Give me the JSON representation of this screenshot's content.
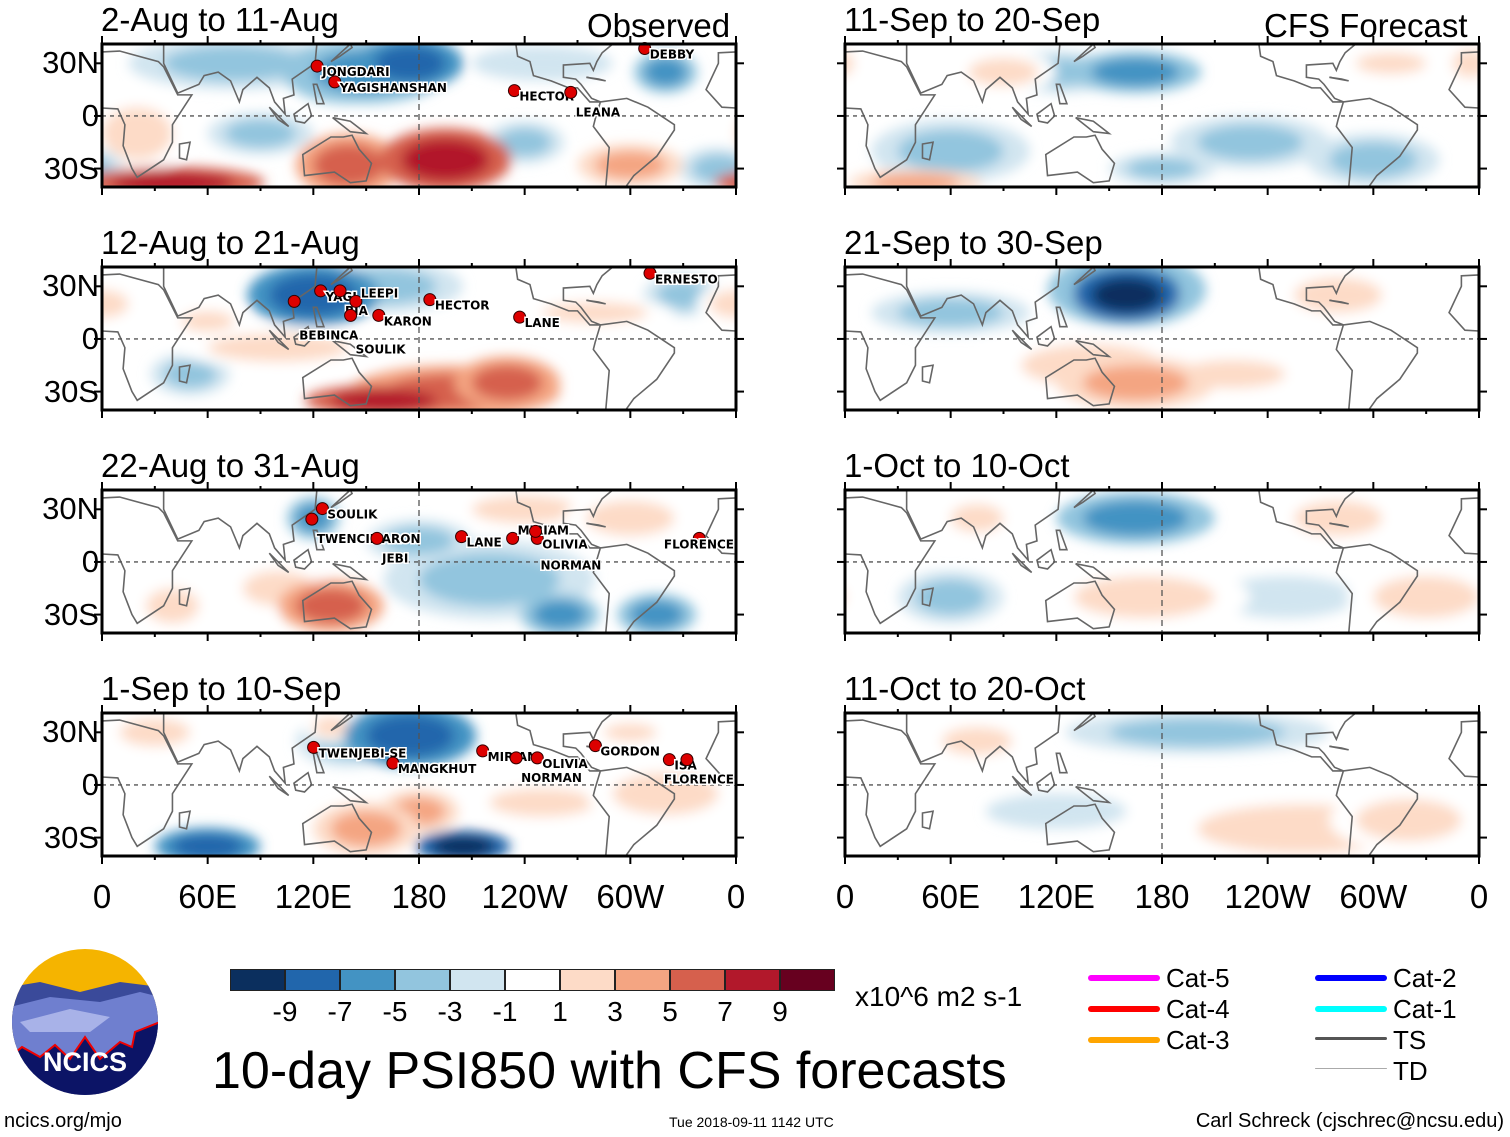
{
  "figure_title": "10-day PSI850 with CFS forecasts",
  "column_tags": {
    "left": "Observed",
    "right": "CFS Forecast"
  },
  "lat_labels": [
    "30N",
    "0",
    "30S"
  ],
  "lon_labels": [
    "0",
    "60E",
    "120E",
    "180",
    "120W",
    "60W",
    "0"
  ],
  "colorbar": {
    "colors": [
      "#0b2f5e",
      "#2166ac",
      "#4393c3",
      "#92c5de",
      "#d1e5f0",
      "#ffffff",
      "#fddbc7",
      "#f4a582",
      "#d6604d",
      "#b2182b",
      "#67001f"
    ],
    "labels": [
      "-9",
      "-7",
      "-5",
      "-3",
      "-1",
      "1",
      "3",
      "5",
      "7",
      "9"
    ],
    "units": "x10^6 m2 s-1"
  },
  "legend": [
    {
      "label": "Cat-5",
      "color": "#ff00ff"
    },
    {
      "label": "Cat-4",
      "color": "#ff0000"
    },
    {
      "label": "Cat-3",
      "color": "#ffa500"
    },
    {
      "label": "Cat-2",
      "color": "#0000ff"
    },
    {
      "label": "Cat-1",
      "color": "#00ffff"
    },
    {
      "label": "TS",
      "color": "#555555"
    },
    {
      "label": "TD",
      "color": "#aaaaaa"
    }
  ],
  "footer": {
    "left": "ncics.org/mjo",
    "center": "Tue 2018-09-11 1142 UTC",
    "right": "Carl Schreck (cjschrec@ncsu.edu)"
  },
  "logo_text": "NCICS",
  "panels": [
    {
      "title": "2-Aug to 11-Aug",
      "col": "left",
      "row": 0,
      "anomalies": [
        [
          75,
          30,
          -3,
          40,
          10
        ],
        [
          140,
          25,
          -5,
          25,
          12
        ],
        [
          150,
          25,
          -5,
          30,
          12
        ],
        [
          175,
          30,
          -7,
          20,
          10
        ],
        [
          250,
          30,
          -1,
          40,
          10
        ],
        [
          320,
          25,
          -5,
          12,
          8
        ],
        [
          20,
          -10,
          3,
          20,
          15
        ],
        [
          90,
          -10,
          -3,
          20,
          8
        ],
        [
          240,
          -15,
          -3,
          15,
          8
        ],
        [
          350,
          -30,
          -3,
          15,
          8
        ],
        [
          300,
          -28,
          5,
          20,
          8
        ],
        [
          140,
          -28,
          7,
          20,
          12
        ],
        [
          195,
          -25,
          9,
          25,
          12
        ],
        [
          40,
          -38,
          9,
          35,
          6
        ]
      ],
      "storms": [
        {
          "name": "JONGDARI",
          "lon": 125,
          "lat": 25
        },
        {
          "name": "YAGISHANSHAN",
          "lon": 135,
          "lat": 16
        },
        {
          "name": "HECTOR",
          "lon": 237,
          "lat": 11
        },
        {
          "name": "LEANA",
          "lon": 269,
          "lat": 10
        },
        {
          "name": "DEBBY",
          "lon": 311,
          "lat": 35
        }
      ]
    },
    {
      "title": "12-Aug to 21-Aug",
      "col": "left",
      "row": 1,
      "anomalies": [
        [
          160,
          30,
          -3,
          30,
          10
        ],
        [
          120,
          25,
          -7,
          25,
          12
        ],
        [
          330,
          25,
          -3,
          15,
          8
        ],
        [
          50,
          -20,
          -3,
          15,
          8
        ],
        [
          60,
          10,
          3,
          15,
          6
        ],
        [
          100,
          -5,
          3,
          40,
          8
        ],
        [
          280,
          15,
          3,
          30,
          6
        ],
        [
          0,
          20,
          3,
          15,
          8
        ],
        [
          200,
          -30,
          7,
          40,
          10
        ],
        [
          230,
          -25,
          7,
          20,
          10
        ],
        [
          160,
          -35,
          9,
          30,
          6
        ]
      ],
      "storms": [
        {
          "name": "ERNESTO",
          "lon": 314,
          "lat": 34
        },
        {
          "name": "YAGI",
          "lon": 127,
          "lat": 24
        },
        {
          "name": "BIA",
          "lon": 138,
          "lat": 24
        },
        {
          "name": "BEBINCA",
          "lon": 112,
          "lat": 18
        },
        {
          "name": "LEEPI",
          "lon": 147,
          "lat": 18
        },
        {
          "name": "SOULIK",
          "lon": 144,
          "lat": 10
        },
        {
          "name": "KARON",
          "lon": 160,
          "lat": 10
        },
        {
          "name": "HECTOR",
          "lon": 189,
          "lat": 19
        },
        {
          "name": "LANE",
          "lon": 240,
          "lat": 9
        }
      ]
    },
    {
      "title": "22-Aug to 31-Aug",
      "col": "left",
      "row": 2,
      "anomalies": [
        [
          220,
          -10,
          -3,
          40,
          15
        ],
        [
          180,
          12,
          -3,
          20,
          8
        ],
        [
          120,
          25,
          -5,
          10,
          8
        ],
        [
          260,
          -30,
          -5,
          15,
          8
        ],
        [
          315,
          -30,
          -5,
          15,
          8
        ],
        [
          240,
          30,
          3,
          30,
          8
        ],
        [
          300,
          25,
          3,
          25,
          10
        ],
        [
          100,
          -15,
          3,
          20,
          10
        ],
        [
          40,
          -25,
          3,
          15,
          10
        ],
        [
          130,
          -25,
          7,
          20,
          10
        ]
      ],
      "storms": [
        {
          "name": "SOULIK",
          "lon": 128,
          "lat": 27
        },
        {
          "name": "TWENCIMARON",
          "lon": 122,
          "lat": 21
        },
        {
          "name": "JEBI",
          "lon": 159,
          "lat": 10
        },
        {
          "name": "LANE",
          "lon": 207,
          "lat": 11
        },
        {
          "name": "OLIVIA",
          "lon": 250,
          "lat": 10
        },
        {
          "name": "MIRIAM",
          "lon": 236,
          "lat": 10
        },
        {
          "name": "NORMAN",
          "lon": 249,
          "lat": 14
        },
        {
          "name": "FLORENCE",
          "lon": 342,
          "lat": 10
        }
      ]
    },
    {
      "title": "1-Sep to 10-Sep",
      "col": "left",
      "row": 3,
      "anomalies": [
        [
          140,
          25,
          -3,
          20,
          10
        ],
        [
          175,
          28,
          -7,
          25,
          12
        ],
        [
          60,
          -35,
          -7,
          20,
          7
        ],
        [
          205,
          -35,
          -9,
          18,
          6
        ],
        [
          130,
          33,
          3,
          10,
          6
        ],
        [
          250,
          -10,
          3,
          30,
          8
        ],
        [
          320,
          -5,
          3,
          30,
          12
        ],
        [
          30,
          30,
          3,
          20,
          8
        ],
        [
          300,
          30,
          3,
          15,
          5
        ],
        [
          180,
          -15,
          5,
          15,
          8
        ],
        [
          150,
          -25,
          5,
          20,
          10
        ]
      ],
      "storms": [
        {
          "name": "TWENJEBI-SE",
          "lon": 123,
          "lat": 18
        },
        {
          "name": "MANGKHUT",
          "lon": 168,
          "lat": 9
        },
        {
          "name": "MIRIAM",
          "lon": 219,
          "lat": 16
        },
        {
          "name": "OLIVIA",
          "lon": 250,
          "lat": 12
        },
        {
          "name": "NORMAN",
          "lon": 238,
          "lat": 12
        },
        {
          "name": "GORDON",
          "lon": 283,
          "lat": 19
        },
        {
          "name": "ISA",
          "lon": 325,
          "lat": 11
        },
        {
          "name": "FLORENCE",
          "lon": 335,
          "lat": 11
        }
      ]
    },
    {
      "title": "11-Sep to 20-Sep",
      "col": "right",
      "row": 0,
      "anomalies": [
        [
          120,
          25,
          -3,
          25,
          8
        ],
        [
          165,
          25,
          -5,
          25,
          8
        ],
        [
          230,
          -15,
          -3,
          30,
          10
        ],
        [
          180,
          -30,
          -3,
          20,
          6
        ],
        [
          300,
          -25,
          -3,
          25,
          10
        ],
        [
          60,
          -20,
          -3,
          30,
          12
        ],
        [
          355,
          30,
          3,
          10,
          8
        ],
        [
          310,
          30,
          3,
          20,
          6
        ],
        [
          90,
          25,
          3,
          20,
          8
        ],
        [
          40,
          -38,
          5,
          25,
          5
        ]
      ],
      "storms": []
    },
    {
      "title": "21-Sep to 30-Sep",
      "col": "right",
      "row": 1,
      "anomalies": [
        [
          160,
          28,
          -5,
          30,
          14
        ],
        [
          160,
          25,
          -9,
          20,
          10
        ],
        [
          60,
          15,
          -3,
          30,
          8
        ],
        [
          140,
          -15,
          3,
          40,
          12
        ],
        [
          280,
          25,
          3,
          25,
          10
        ],
        [
          220,
          -20,
          3,
          30,
          8
        ],
        [
          165,
          -25,
          5,
          30,
          10
        ]
      ],
      "storms": []
    },
    {
      "title": "1-Oct to 10-Oct",
      "col": "right",
      "row": 2,
      "anomalies": [
        [
          250,
          -20,
          -1,
          40,
          12
        ],
        [
          165,
          25,
          -5,
          30,
          10
        ],
        [
          60,
          -20,
          -3,
          20,
          10
        ],
        [
          75,
          25,
          3,
          15,
          8
        ],
        [
          170,
          -20,
          3,
          40,
          12
        ],
        [
          280,
          25,
          3,
          25,
          10
        ],
        [
          330,
          -20,
          3,
          30,
          12
        ]
      ],
      "storms": []
    },
    {
      "title": "11-Oct to 20-Oct",
      "col": "right",
      "row": 3,
      "anomalies": [
        [
          200,
          -25,
          1,
          50,
          15
        ],
        [
          120,
          -15,
          -1,
          40,
          10
        ],
        [
          200,
          30,
          -3,
          50,
          8
        ],
        [
          75,
          25,
          3,
          20,
          8
        ],
        [
          260,
          -25,
          3,
          60,
          14
        ],
        [
          320,
          -20,
          3,
          30,
          12
        ]
      ],
      "storms": []
    }
  ]
}
